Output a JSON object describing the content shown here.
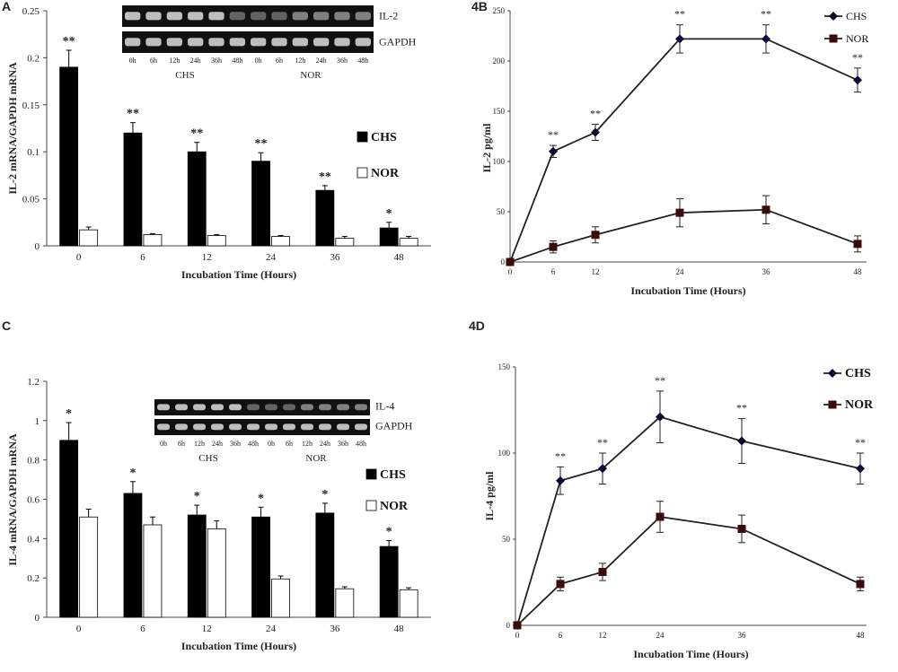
{
  "chart_data": [
    {
      "id": "A",
      "panel_label": "A",
      "type": "bar",
      "categories": [
        "0",
        "6",
        "12",
        "24",
        "36",
        "48"
      ],
      "series": [
        {
          "name": "CHS",
          "values": [
            0.19,
            0.12,
            0.1,
            0.09,
            0.059,
            0.019
          ],
          "errors": [
            0.018,
            0.011,
            0.01,
            0.009,
            0.005,
            0.006
          ],
          "color": "#000000",
          "sig": [
            "**",
            "**",
            "**",
            "**",
            "**",
            "*"
          ]
        },
        {
          "name": "NOR",
          "values": [
            0.017,
            0.012,
            0.011,
            0.01,
            0.008,
            0.008
          ],
          "errors": [
            0.003,
            0.001,
            0.001,
            0.001,
            0.002,
            0.002
          ],
          "color": "#ffffff"
        }
      ],
      "ylabel": "IL-2 mRNA/GAPDH mRNA",
      "xlabel": "Incubation Time (Hours)",
      "ylim": [
        0,
        0.25
      ],
      "yticks": [
        "0",
        "0.05",
        "0.1",
        "0.15",
        "0.2",
        "0.25"
      ],
      "legend": "right",
      "gel": {
        "bands": [
          "IL-2",
          "GAPDH"
        ],
        "lanes": [
          "0h",
          "6h",
          "12h",
          "24h",
          "36h",
          "48h",
          "0h",
          "6h",
          "12h",
          "24h",
          "36h",
          "48h"
        ],
        "groups": [
          "CHS",
          "NOR"
        ]
      }
    },
    {
      "id": "B",
      "panel_label": "4B",
      "type": "line",
      "x": [
        0,
        6,
        12,
        24,
        36,
        48
      ],
      "xticks": [
        "0",
        "6",
        "12",
        "24",
        "36",
        "48"
      ],
      "series": [
        {
          "name": "CHS",
          "values": [
            0,
            110,
            129,
            222,
            222,
            181
          ],
          "errors": [
            0,
            6,
            8,
            14,
            14,
            12
          ],
          "marker": "diamond",
          "sig": [
            "",
            "**",
            "**",
            "**",
            "**",
            "**"
          ]
        },
        {
          "name": "NOR",
          "values": [
            0,
            15,
            27,
            49,
            52,
            18
          ],
          "errors": [
            0,
            6,
            8,
            14,
            14,
            8
          ],
          "marker": "square"
        }
      ],
      "ylabel": "IL-2 pg/ml",
      "xlabel": "Incubation Time (Hours)",
      "ylim": [
        0,
        250
      ],
      "yticks": [
        "0",
        "50",
        "100",
        "150",
        "200",
        "250"
      ],
      "legend": "top-right"
    },
    {
      "id": "C",
      "panel_label": "C",
      "type": "bar",
      "categories": [
        "0",
        "6",
        "12",
        "24",
        "36",
        "48"
      ],
      "series": [
        {
          "name": "CHS",
          "values": [
            0.9,
            0.63,
            0.52,
            0.51,
            0.53,
            0.36
          ],
          "errors": [
            0.09,
            0.06,
            0.05,
            0.05,
            0.05,
            0.03
          ],
          "color": "#000000",
          "sig": [
            "*",
            "*",
            "*",
            "*",
            "*",
            "*"
          ]
        },
        {
          "name": "NOR",
          "values": [
            0.51,
            0.47,
            0.45,
            0.195,
            0.145,
            0.14
          ],
          "errors": [
            0.04,
            0.04,
            0.04,
            0.015,
            0.01,
            0.01
          ],
          "color": "#ffffff"
        }
      ],
      "ylabel": "IL-4 mRNA/GAPDH mRNA",
      "xlabel": "Incubation Time (Hours)",
      "ylim": [
        0,
        1.2
      ],
      "yticks": [
        "0",
        "0.2",
        "0.4",
        "0.6",
        "0.8",
        "1",
        "1.2"
      ],
      "legend": "right",
      "gel": {
        "bands": [
          "IL-4",
          "GAPDH"
        ],
        "lanes": [
          "0h",
          "6h",
          "12h",
          "24h",
          "36h",
          "48h",
          "0h",
          "6h",
          "12h",
          "24h",
          "36h",
          "48h"
        ],
        "groups": [
          "CHS",
          "NOR"
        ]
      }
    },
    {
      "id": "D",
      "panel_label": "4D",
      "type": "line",
      "x": [
        0,
        6,
        12,
        24,
        36,
        48
      ],
      "xticks": [
        "0",
        "6",
        "12",
        "24",
        "36",
        "48"
      ],
      "series": [
        {
          "name": "CHS",
          "values": [
            0,
            84,
            91,
            121,
            107,
            91
          ],
          "errors": [
            0,
            8,
            9,
            15,
            13,
            9
          ],
          "marker": "diamond",
          "sig": [
            "",
            "**",
            "**",
            "**",
            "**",
            "**"
          ]
        },
        {
          "name": "NOR",
          "values": [
            0,
            24,
            31,
            63,
            56,
            24
          ],
          "errors": [
            0,
            4,
            5,
            9,
            8,
            4
          ],
          "marker": "square"
        }
      ],
      "ylabel": "IL-4 pg/ml",
      "xlabel": "Incubation Time (Hours)",
      "ylim": [
        0,
        150
      ],
      "yticks": [
        "0",
        "50",
        "100",
        "150"
      ],
      "legend": "top-right"
    }
  ]
}
